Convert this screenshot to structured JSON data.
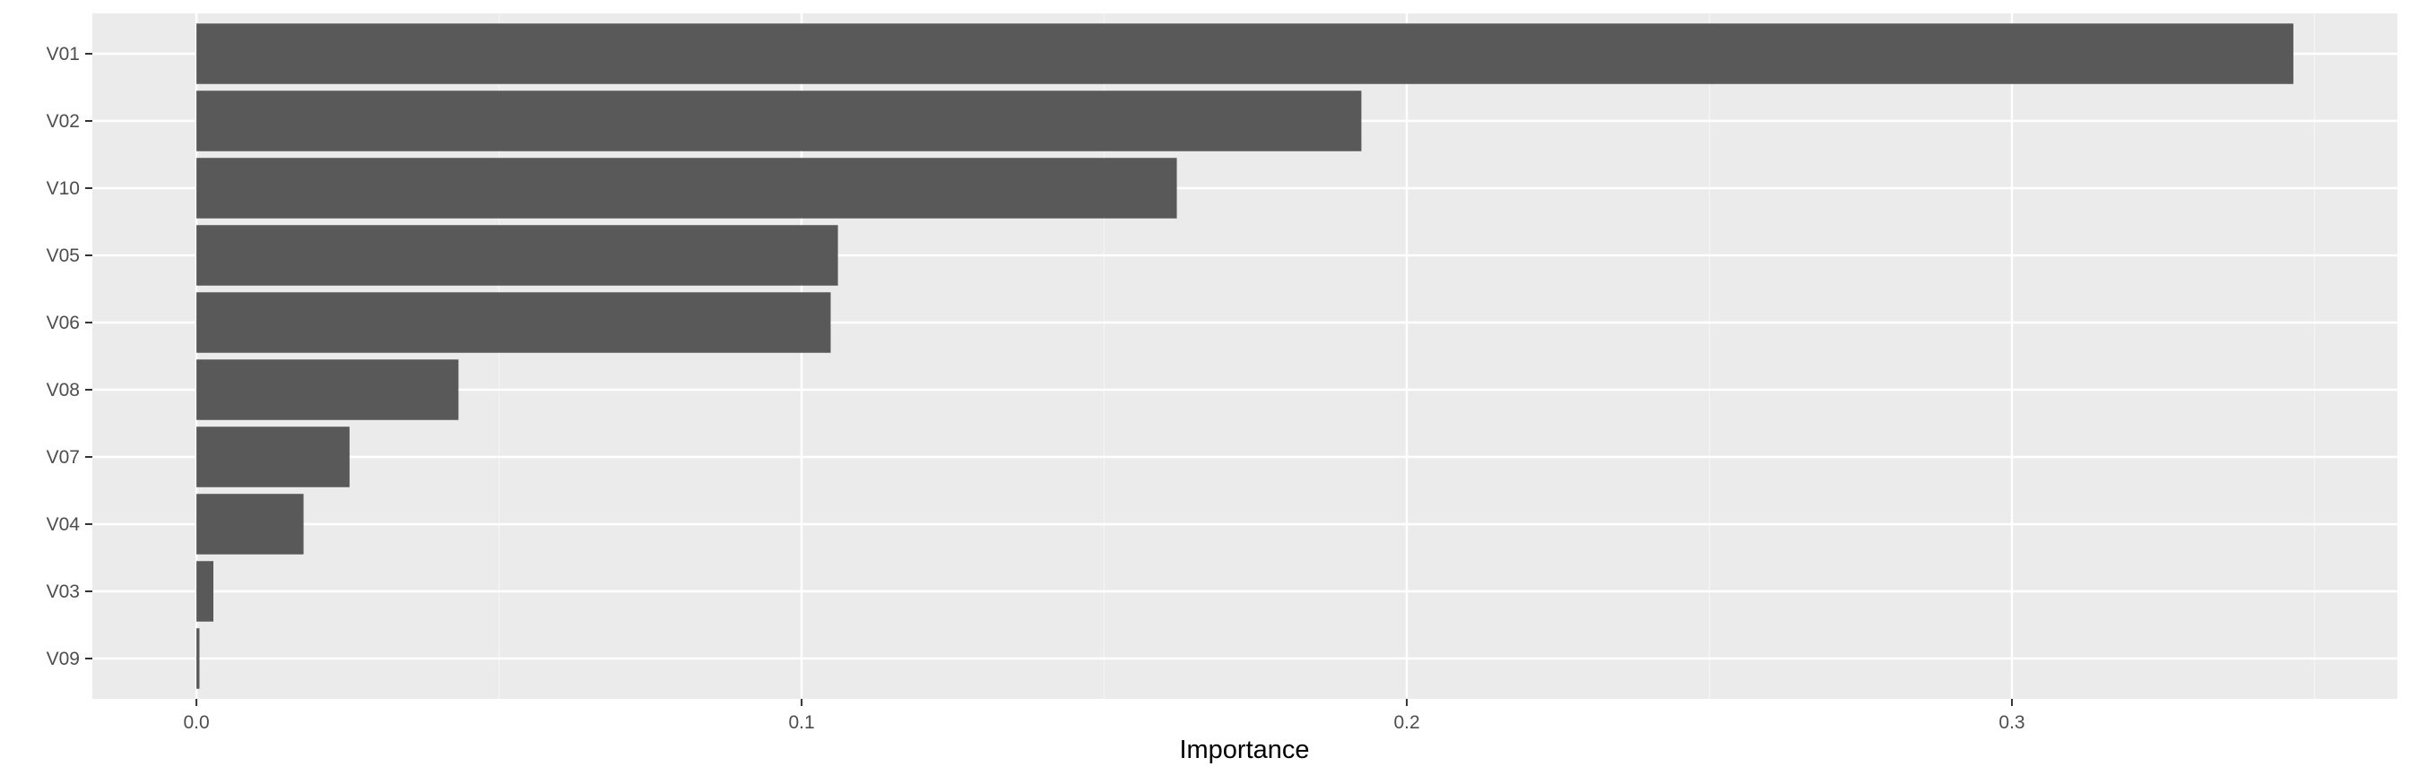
{
  "chart_data": {
    "type": "bar",
    "orientation": "horizontal",
    "categories": [
      "V01",
      "V02",
      "V10",
      "V05",
      "V06",
      "V08",
      "V07",
      "V04",
      "V03",
      "V09"
    ],
    "values": [
      0.3465,
      0.1925,
      0.162,
      0.106,
      0.1048,
      0.0433,
      0.0253,
      0.0177,
      0.0028,
      0.0005
    ],
    "xlabel": "Importance",
    "ylabel": "",
    "xlim": [
      -0.0172,
      0.3637
    ],
    "xticks": [
      0.0,
      0.1,
      0.2,
      0.3
    ],
    "xtick_labels": [
      "0.0",
      "0.1",
      "0.2",
      "0.3"
    ],
    "grid": true,
    "colors": {
      "bar": "#595959",
      "panel": "#ebebeb",
      "grid_major": "#ffffff",
      "grid_minor": "#f5f5f5",
      "tick": "#333333"
    }
  }
}
